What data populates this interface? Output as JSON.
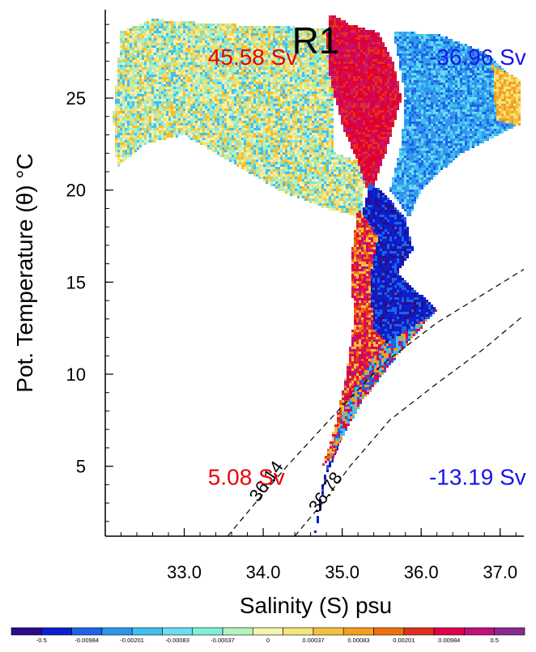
{
  "chart_data": {
    "type": "heatmap",
    "title": "R1",
    "xlabel": "Salinity (S) psu",
    "ylabel": "Pot. Temperature (θ) °C",
    "xlim": [
      32.0,
      37.3
    ],
    "ylim": [
      1.2,
      29.8
    ],
    "xticks": [
      {
        "value": 33.0,
        "label": "33.0"
      },
      {
        "value": 34.0,
        "label": "34.0"
      },
      {
        "value": 35.0,
        "label": "35.0"
      },
      {
        "value": 36.0,
        "label": "36.0"
      },
      {
        "value": 37.0,
        "label": "37.0"
      }
    ],
    "yticks": [
      {
        "value": 5,
        "label": "5"
      },
      {
        "value": 10,
        "label": "10"
      },
      {
        "value": 15,
        "label": "15"
      },
      {
        "value": 20,
        "label": "20"
      },
      {
        "value": 25,
        "label": "25"
      }
    ],
    "transport_labels": [
      {
        "text": "45.58 Sv",
        "color": "#e8000b",
        "s": 33.3,
        "t": 26.8
      },
      {
        "text": "-36.96 Sv",
        "color": "#1a14e6",
        "s": 36.1,
        "t": 26.8
      },
      {
        "text": "5.08 Sv",
        "color": "#e8000b",
        "s": 33.3,
        "t": 4.0
      },
      {
        "text": "-13.19 Sv",
        "color": "#1a14e6",
        "s": 36.1,
        "t": 4.0
      }
    ],
    "density_contours": [
      {
        "label": "36.14",
        "points": [
          [
            33.55,
            1.2
          ],
          [
            33.9,
            3.0
          ],
          [
            34.3,
            5.0
          ],
          [
            34.9,
            7.8
          ],
          [
            35.5,
            10.5
          ],
          [
            36.2,
            12.8
          ],
          [
            37.0,
            14.9
          ],
          [
            37.3,
            15.7
          ]
        ],
        "label_at": [
          34.1,
          4.0
        ]
      },
      {
        "label": "36.78",
        "points": [
          [
            34.4,
            1.2
          ],
          [
            34.75,
            3.0
          ],
          [
            35.1,
            5.0
          ],
          [
            35.6,
            7.5
          ],
          [
            36.2,
            9.5
          ],
          [
            36.8,
            11.4
          ],
          [
            37.3,
            13.2
          ]
        ],
        "label_at": [
          34.85,
          3.4
        ]
      }
    ],
    "colorbar": {
      "colors": [
        "#2a0d8c",
        "#0a1fd0",
        "#1c64e8",
        "#2c96ec",
        "#40bff0",
        "#6cdcf2",
        "#7ff0d8",
        "#b4f4bc",
        "#f2f4b0",
        "#f6e47c",
        "#f4c040",
        "#f4a01c",
        "#f07010",
        "#e03020",
        "#e0004c",
        "#c0107a",
        "#8a2890"
      ],
      "labels": [
        "-0.5",
        "-0.00984",
        "-0.00201",
        "-0.00083",
        "-0.00037",
        "0",
        "0.00037",
        "0.00083",
        "0.00201",
        "0.00984",
        "0.5"
      ]
    },
    "regions": [
      {
        "name": "upper-warm-mixed",
        "polygon": [
          [
            32.15,
            21.2
          ],
          [
            32.5,
            22.5
          ],
          [
            33.0,
            23.0
          ],
          [
            33.6,
            21.5
          ],
          [
            34.2,
            20.0
          ],
          [
            34.8,
            19.0
          ],
          [
            35.25,
            18.5
          ],
          [
            35.3,
            21.5
          ],
          [
            34.9,
            22.0
          ],
          [
            34.9,
            28.8
          ],
          [
            34.0,
            28.9
          ],
          [
            33.2,
            29.1
          ],
          [
            32.6,
            29.3
          ],
          [
            32.2,
            28.6
          ],
          [
            32.1,
            24.0
          ]
        ],
        "palette": [
          "#f0e070",
          "#f4c030",
          "#7fe8d8",
          "#40c0f0",
          "#b4f0c0",
          "#f8f0b0"
        ]
      },
      {
        "name": "upper-red-tongue",
        "polygon": [
          [
            34.85,
            29.6
          ],
          [
            35.1,
            29.0
          ],
          [
            35.45,
            28.6
          ],
          [
            35.65,
            27.0
          ],
          [
            35.75,
            25.0
          ],
          [
            35.55,
            22.0
          ],
          [
            35.45,
            20.8
          ],
          [
            35.35,
            19.6
          ],
          [
            35.2,
            21.5
          ],
          [
            35.0,
            23.5
          ],
          [
            34.85,
            26.0
          ],
          [
            34.8,
            28.2
          ]
        ],
        "palette": [
          "#e8001e",
          "#d40050",
          "#e43020",
          "#c81070"
        ]
      },
      {
        "name": "upper-blue-mass",
        "polygon": [
          [
            35.65,
            28.6
          ],
          [
            36.2,
            28.5
          ],
          [
            36.8,
            27.5
          ],
          [
            37.2,
            26.0
          ],
          [
            37.2,
            23.5
          ],
          [
            36.5,
            22.0
          ],
          [
            36.0,
            20.0
          ],
          [
            35.85,
            18.5
          ],
          [
            35.6,
            20.0
          ],
          [
            35.75,
            22.5
          ],
          [
            35.8,
            25.0
          ]
        ],
        "palette": [
          "#3c96ec",
          "#40bff0",
          "#1c64e8",
          "#6cdcf2",
          "#2c96ec"
        ]
      },
      {
        "name": "right-edge-warm",
        "polygon": [
          [
            36.9,
            26.8
          ],
          [
            37.25,
            26.0
          ],
          [
            37.25,
            23.5
          ],
          [
            36.95,
            23.8
          ]
        ],
        "palette": [
          "#f4c040",
          "#f0a020",
          "#f6e47c"
        ]
      },
      {
        "name": "thermocline-blue",
        "polygon": [
          [
            35.35,
            20.5
          ],
          [
            35.6,
            19.5
          ],
          [
            35.8,
            18.5
          ],
          [
            35.9,
            16.8
          ],
          [
            35.7,
            15.5
          ],
          [
            36.2,
            13.5
          ],
          [
            35.8,
            12.0
          ],
          [
            35.4,
            10.0
          ],
          [
            35.1,
            8.0
          ],
          [
            34.95,
            6.0
          ],
          [
            34.8,
            4.5
          ],
          [
            34.7,
            2.0
          ],
          [
            34.65,
            1.2
          ],
          [
            34.75,
            4.0
          ],
          [
            34.9,
            6.5
          ],
          [
            35.05,
            9.0
          ],
          [
            35.25,
            12.0
          ],
          [
            35.3,
            15.0
          ],
          [
            35.2,
            17.5
          ]
        ],
        "palette": [
          "#0a1fd0",
          "#2a0d8c",
          "#1c64e8",
          "#0a1fd0"
        ]
      },
      {
        "name": "thermocline-warm",
        "polygon": [
          [
            35.2,
            19.0
          ],
          [
            35.45,
            17.5
          ],
          [
            35.35,
            15.0
          ],
          [
            35.4,
            12.5
          ],
          [
            35.6,
            11.5
          ],
          [
            35.3,
            9.5
          ],
          [
            35.05,
            7.5
          ],
          [
            34.9,
            5.5
          ],
          [
            34.75,
            5.0
          ],
          [
            34.9,
            7.0
          ],
          [
            35.05,
            10.0
          ],
          [
            35.15,
            13.0
          ],
          [
            35.1,
            16.0
          ]
        ],
        "palette": [
          "#e0004c",
          "#f07010",
          "#f4c040",
          "#c0107a",
          "#e43020"
        ]
      },
      {
        "name": "deep-branch",
        "polygon": [
          [
            35.5,
            11.5
          ],
          [
            35.9,
            12.6
          ],
          [
            36.2,
            13.5
          ],
          [
            35.7,
            11.0
          ],
          [
            35.25,
            8.5
          ],
          [
            35.0,
            6.5
          ],
          [
            34.85,
            5.5
          ],
          [
            35.0,
            7.8
          ],
          [
            35.25,
            10.0
          ]
        ],
        "palette": [
          "#40bff0",
          "#1c64e8",
          "#f0a020",
          "#e0004c"
        ]
      }
    ]
  }
}
